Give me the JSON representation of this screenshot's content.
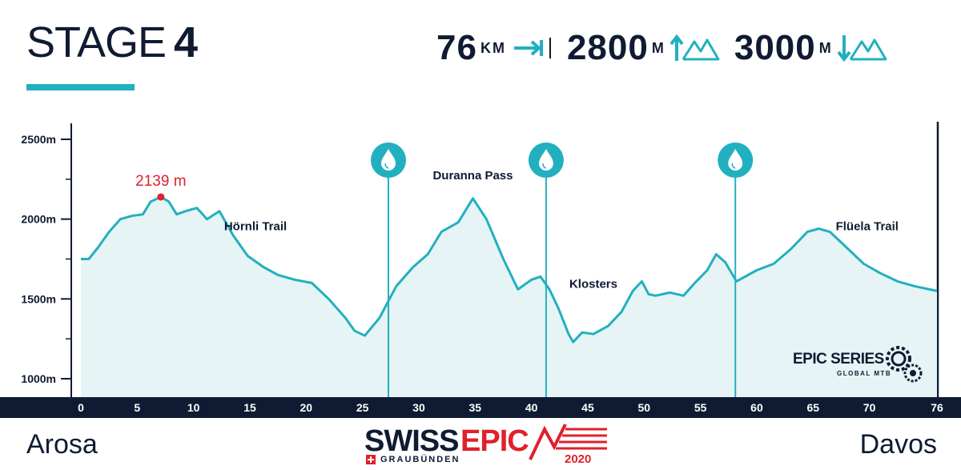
{
  "header": {
    "stage_word": "STAGE",
    "stage_number": "4",
    "stats": [
      {
        "value": "76",
        "unit": "KM",
        "icon": "distance-arrow-icon"
      },
      {
        "value": "2800",
        "unit": "M",
        "icon": "elevation-gain-icon"
      },
      {
        "value": "3000",
        "unit": "M",
        "icon": "elevation-loss-icon"
      }
    ]
  },
  "footer": {
    "start_city": "Arosa",
    "end_city": "Davos",
    "logo_swiss": "SWISS",
    "logo_epic": "EPIC",
    "logo_canton": "GRAUBÜNDEN",
    "logo_year": "2020",
    "series_name": "EPIC SERIES",
    "series_sub": "GLOBAL MTB"
  },
  "colors": {
    "navy": "#0f1b33",
    "accent": "#22b0c0",
    "fill": "#e6f4f5",
    "peak": "#e0202d"
  },
  "chart_data": {
    "type": "area",
    "x_unit": "km",
    "y_unit": "m",
    "xlim": [
      0,
      76
    ],
    "ylim": [
      900,
      2600
    ],
    "x_ticks": [
      0,
      5,
      10,
      15,
      20,
      25,
      30,
      35,
      40,
      45,
      50,
      55,
      60,
      65,
      70,
      76
    ],
    "x_tick_labels": [
      "0",
      "5",
      "10",
      "15",
      "20",
      "25",
      "30",
      "35",
      "40",
      "45",
      "50",
      "55",
      "60",
      "65",
      "70",
      "76"
    ],
    "y_ticks": [
      1000,
      1500,
      2000,
      2500
    ],
    "y_tick_labels": [
      "1000m",
      "1500m",
      "2000m",
      "2500m"
    ],
    "profile": {
      "x": [
        0,
        0.7,
        1.5,
        2.5,
        3.5,
        4.5,
        5.5,
        6.2,
        7.1,
        7.8,
        8.5,
        9.3,
        10.3,
        11.2,
        12.3,
        13.5,
        14.8,
        16.2,
        17.5,
        19,
        20.5,
        22,
        23.5,
        24.3,
        25.2,
        26.5,
        28,
        29.5,
        30.8,
        32,
        33.5,
        34.8,
        36,
        37.5,
        38.8,
        40,
        40.8,
        41.6,
        42.4,
        43.3,
        43.7,
        44.5,
        45.5,
        46.8,
        48,
        49,
        49.8,
        50.4,
        51,
        52.3,
        53.5,
        54.5,
        55.6,
        56.4,
        57.2,
        58.2,
        60,
        61.5,
        63,
        64.5,
        65.5,
        66.5,
        68,
        69.5,
        71,
        72.5,
        74,
        76
      ],
      "y": [
        1750,
        1750,
        1820,
        1920,
        2000,
        2020,
        2030,
        2110,
        2139,
        2110,
        2030,
        2050,
        2070,
        2000,
        2050,
        1900,
        1770,
        1700,
        1650,
        1620,
        1600,
        1500,
        1380,
        1300,
        1270,
        1380,
        1580,
        1700,
        1780,
        1920,
        1980,
        2130,
        2000,
        1750,
        1560,
        1620,
        1640,
        1560,
        1440,
        1280,
        1230,
        1290,
        1280,
        1330,
        1420,
        1550,
        1610,
        1530,
        1520,
        1540,
        1520,
        1600,
        1680,
        1780,
        1730,
        1610,
        1680,
        1720,
        1810,
        1920,
        1940,
        1920,
        1820,
        1720,
        1660,
        1610,
        1580,
        1550
      ]
    },
    "water_stations_km": [
      27.3,
      41.3,
      58.1
    ],
    "peak": {
      "x": 7.1,
      "y": 2139,
      "label": "2139 m"
    },
    "annotations": [
      {
        "text": "Hörnli Trail",
        "x": 15.5,
        "y": 1930
      },
      {
        "text": "Duranna Pass",
        "x": 34.8,
        "y": 2250
      },
      {
        "text": "Klosters",
        "x": 45.5,
        "y": 1570
      },
      {
        "text": "Flüela Trail",
        "x": 69.8,
        "y": 1930
      }
    ]
  }
}
